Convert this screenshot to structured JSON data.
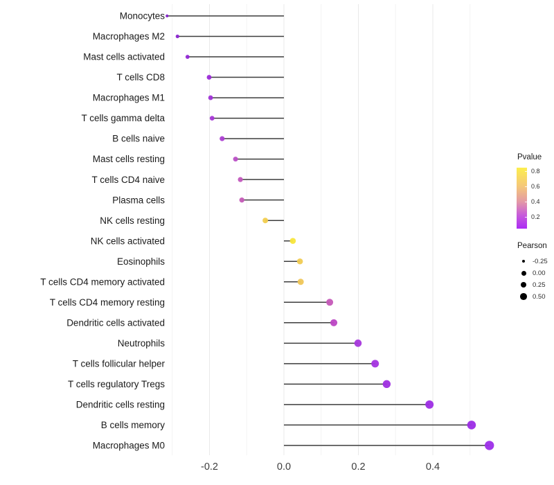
{
  "chart_data": {
    "type": "lollipop",
    "title": "",
    "xlabel": "",
    "ylabel": "",
    "orientation": "horizontal",
    "grid": true,
    "xlim": [
      -0.32,
      0.62
    ],
    "x_ticks": {
      "values": [
        -0.2,
        0.0,
        0.2,
        0.4
      ],
      "labels": [
        "-0.2",
        "0.0",
        "0.2",
        "0.4"
      ]
    },
    "x_minor_gridlines": [
      -0.3,
      -0.1,
      0.1,
      0.3,
      0.5
    ],
    "baseline_x": 0.0,
    "points": [
      {
        "label": "Monocytes",
        "pearson": -0.314,
        "pvalue_est": 0.05,
        "color": "#8221C9",
        "size": 4.2
      },
      {
        "label": "Macrophages M2",
        "pearson": -0.286,
        "pvalue_est": 0.07,
        "color": "#8B24D0",
        "size": 5.2
      },
      {
        "label": "Mast cells activated",
        "pearson": -0.259,
        "pvalue_est": 0.09,
        "color": "#9227D5",
        "size": 5.8
      },
      {
        "label": "T cells CD8",
        "pearson": -0.201,
        "pvalue_est": 0.12,
        "color": "#9B2AD8",
        "size": 6.8
      },
      {
        "label": "Macrophages M1",
        "pearson": -0.197,
        "pvalue_est": 0.13,
        "color": "#A031D7",
        "size": 6.8
      },
      {
        "label": "T cells gamma delta",
        "pearson": -0.193,
        "pvalue_est": 0.15,
        "color": "#A637D6",
        "size": 6.8
      },
      {
        "label": "B cells naive",
        "pearson": -0.166,
        "pvalue_est": 0.2,
        "color": "#AC3ED2",
        "size": 7.2
      },
      {
        "label": "Mast cells resting",
        "pearson": -0.13,
        "pvalue_est": 0.3,
        "color": "#BB50C6",
        "size": 7.0
      },
      {
        "label": "T cells CD4 naive",
        "pearson": -0.117,
        "pvalue_est": 0.33,
        "color": "#C257BD",
        "size": 7.2
      },
      {
        "label": "Plasma cells",
        "pearson": -0.113,
        "pvalue_est": 0.35,
        "color": "#C45BB7",
        "size": 7.4
      },
      {
        "label": "NK cells resting",
        "pearson": -0.05,
        "pvalue_est": 0.65,
        "color": "#F2CE4E",
        "size": 8.0
      },
      {
        "label": "NK cells activated",
        "pearson": 0.024,
        "pvalue_est": 0.8,
        "color": "#F8E63C",
        "size": 8.6
      },
      {
        "label": "Eosinophils",
        "pearson": 0.043,
        "pvalue_est": 0.66,
        "color": "#F0CB52",
        "size": 8.6
      },
      {
        "label": "T cells CD4 memory activated",
        "pearson": 0.045,
        "pvalue_est": 0.63,
        "color": "#EFC659",
        "size": 9.0
      },
      {
        "label": "T cells CD4 memory resting",
        "pearson": 0.123,
        "pvalue_est": 0.34,
        "color": "#C558B8",
        "size": 10.0
      },
      {
        "label": "Dendritic cells activated",
        "pearson": 0.134,
        "pvalue_est": 0.28,
        "color": "#BC46C4",
        "size": 10.2
      },
      {
        "label": "Neutrophils",
        "pearson": 0.199,
        "pvalue_est": 0.15,
        "color": "#A637DC",
        "size": 10.6
      },
      {
        "label": "T cells follicular helper",
        "pearson": 0.245,
        "pvalue_est": 0.13,
        "color": "#A434E0",
        "size": 11.0
      },
      {
        "label": "T cells regulatory  Tregs",
        "pearson": 0.276,
        "pvalue_est": 0.11,
        "color": "#9F2FE0",
        "size": 11.4
      },
      {
        "label": "Dendritic cells resting",
        "pearson": 0.391,
        "pvalue_est": 0.1,
        "color": "#9D2DE4",
        "size": 12.0
      },
      {
        "label": "B cells memory",
        "pearson": 0.504,
        "pvalue_est": 0.09,
        "color": "#9C2CE6",
        "size": 12.6
      },
      {
        "label": "Macrophages M0",
        "pearson": 0.552,
        "pvalue_est": 0.08,
        "color": "#9D2EE9",
        "size": 13.4
      }
    ],
    "legends": {
      "pvalue": {
        "title": "Pvalue",
        "ticks": [
          "0.8",
          "0.6",
          "0.4",
          "0.2"
        ],
        "tick_values": [
          0.8,
          0.6,
          0.4,
          0.2
        ],
        "range": [
          0.05,
          0.85
        ],
        "gradient": [
          {
            "offset": 0.0,
            "color": "#FCEE4D"
          },
          {
            "offset": 0.3,
            "color": "#F5C878"
          },
          {
            "offset": 0.55,
            "color": "#E49BA4"
          },
          {
            "offset": 0.78,
            "color": "#C75BDB"
          },
          {
            "offset": 1.0,
            "color": "#AC2CF4"
          }
        ]
      },
      "pearson": {
        "title": "Pearson",
        "items": [
          {
            "label": "-0.25",
            "size": 4.4
          },
          {
            "label": "0.00",
            "size": 7.0
          },
          {
            "label": "0.25",
            "size": 8.4
          },
          {
            "label": "0.50",
            "size": 9.8
          }
        ]
      }
    }
  },
  "colors": {
    "background": "#FFFFFF",
    "stem": "#3C3C3C",
    "grid_major": "#E9E9E9",
    "grid_minor": "#F4F4F4",
    "axis_tick_text": "#3D3D3D",
    "category_text": "#1A1A1A",
    "legend_dot": "#000000"
  }
}
